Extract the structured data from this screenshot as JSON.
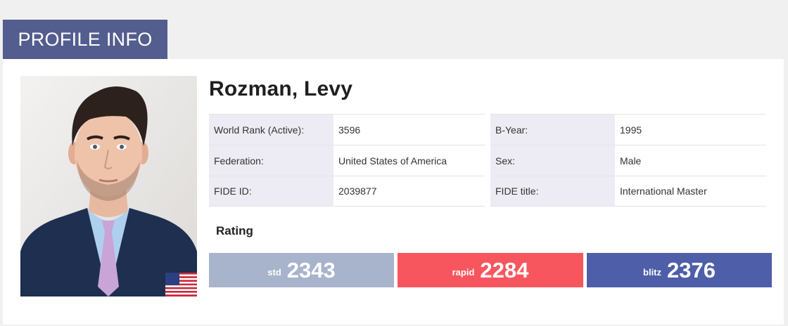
{
  "header": {
    "title": "PROFILE INFO"
  },
  "player": {
    "name": "Rozman, Levy"
  },
  "info_left": [
    {
      "label": "World Rank (Active):",
      "value": "3596"
    },
    {
      "label": "Federation:",
      "value": "United States of America"
    },
    {
      "label": "FIDE ID:",
      "value": "2039877"
    }
  ],
  "info_right": [
    {
      "label": "B-Year:",
      "value": "1995"
    },
    {
      "label": "Sex:",
      "value": "Male"
    },
    {
      "label": "FIDE title:",
      "value": "International Master"
    }
  ],
  "rating": {
    "title": "Rating",
    "std": {
      "type": "std",
      "value": "2343"
    },
    "rapid": {
      "type": "rapid",
      "value": "2284"
    },
    "blitz": {
      "type": "blitz",
      "value": "2376"
    }
  },
  "flag": {
    "icon": "us-flag-icon"
  },
  "colors": {
    "header": "#535d8e",
    "std": "#a8b3cc",
    "rapid": "#f8565e",
    "blitz": "#4e5ea8",
    "label_bg": "#edecf5"
  }
}
